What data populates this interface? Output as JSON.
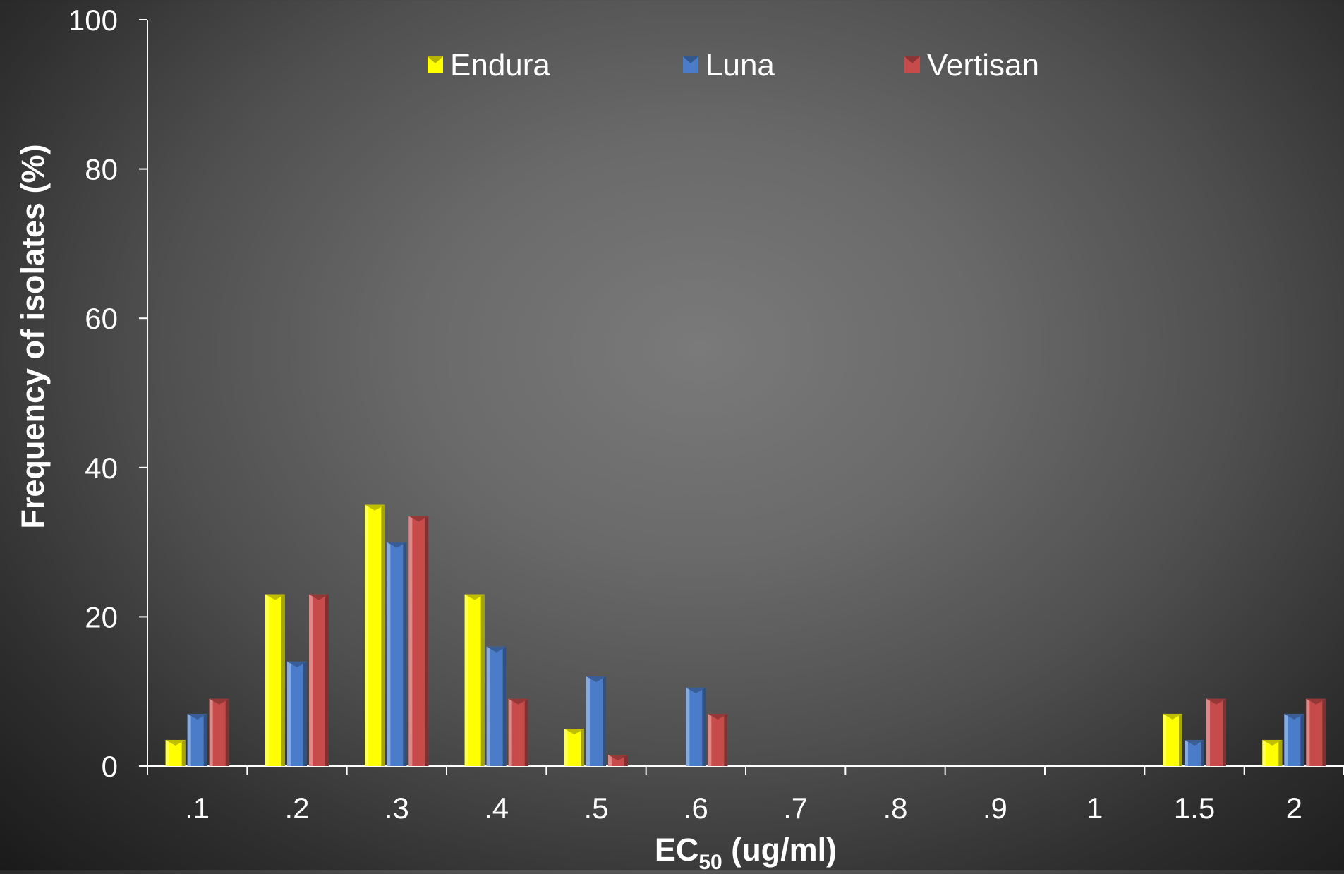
{
  "chart_data": {
    "type": "bar",
    "title": "",
    "xlabel_main": "EC",
    "xlabel_sub": "50",
    "xlabel_rest": " (ug/ml)",
    "ylabel": "Frequency of isolates (%)",
    "ylim": [
      0,
      100
    ],
    "yticks": [
      "0",
      "20",
      "40",
      "60",
      "80",
      "100"
    ],
    "categories": [
      ".1",
      ".2",
      ".3",
      ".4",
      ".5",
      ".6",
      ".7",
      ".8",
      ".9",
      "1",
      "1.5",
      "2"
    ],
    "series": [
      {
        "name": "Endura",
        "color": "#ffff00",
        "values": [
          3.5,
          23,
          35,
          23,
          5,
          0,
          0,
          0,
          0,
          0,
          7,
          3.5
        ]
      },
      {
        "name": "Luna",
        "color": "#4a7cc9",
        "values": [
          7,
          14,
          30,
          16,
          12,
          10.5,
          0,
          0,
          0,
          0,
          3.5,
          7
        ]
      },
      {
        "name": "Vertisan",
        "color": "#c84b4b",
        "values": [
          9,
          23,
          33.5,
          9,
          1.5,
          7,
          0,
          0,
          0,
          0,
          9,
          9
        ]
      }
    ],
    "legend_position": "top-center",
    "grid": false
  }
}
